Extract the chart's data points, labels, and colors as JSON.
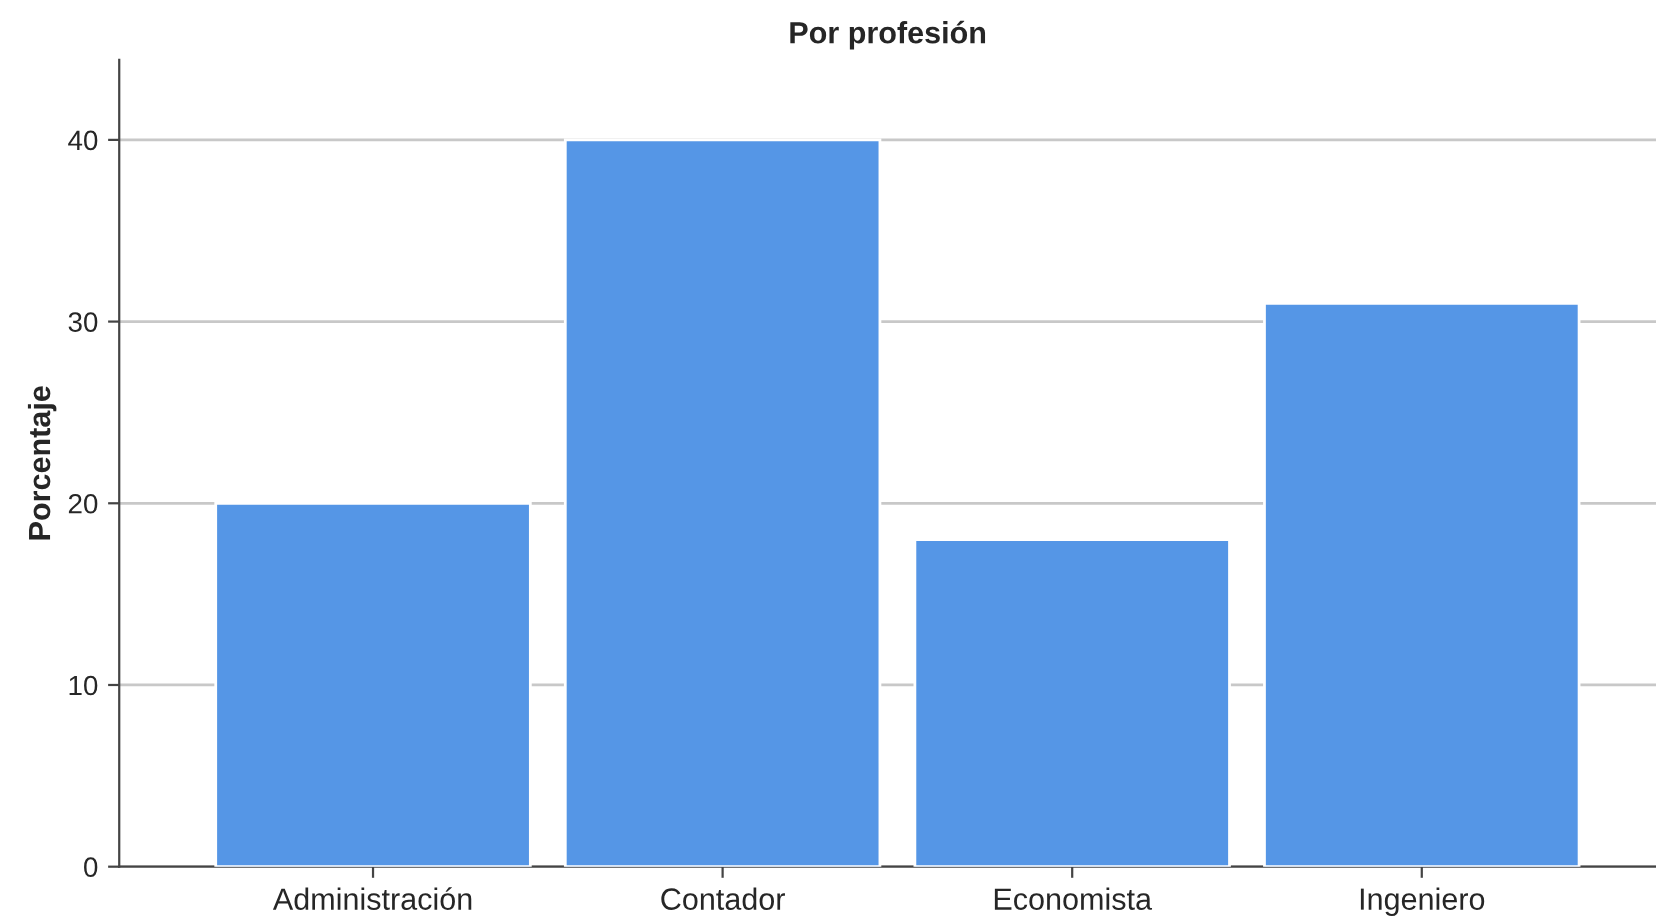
{
  "chart_data": {
    "type": "bar",
    "title": "Por profesión",
    "ylabel": "Porcentaje",
    "categories": [
      "Administración",
      "Contador",
      "Economista",
      "Ingeniero"
    ],
    "values": [
      20,
      40,
      18,
      31
    ],
    "color": "#5596e6",
    "ylim": [
      0,
      44.4
    ],
    "yticks": [
      0,
      10,
      20,
      30,
      40
    ],
    "grid": "y"
  }
}
